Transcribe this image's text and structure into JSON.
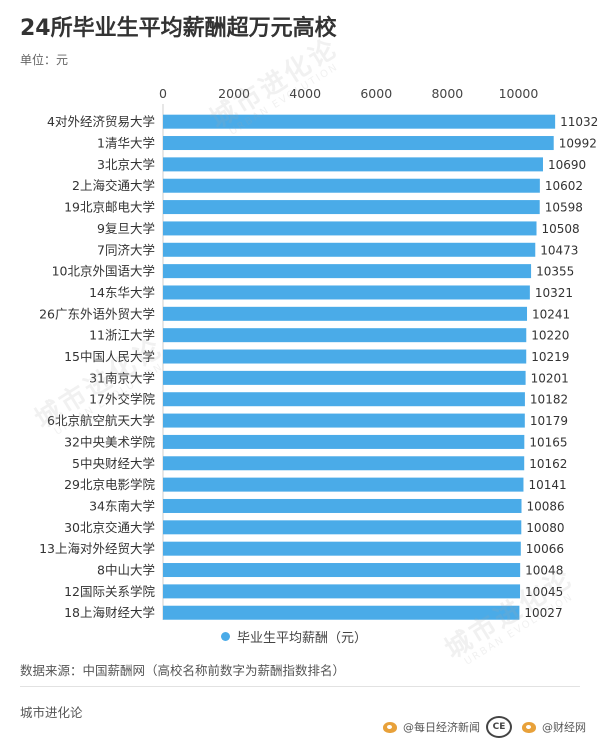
{
  "title": "24所毕业生平均薪酬超万元高校",
  "unit_label": "单位：元",
  "legend_label": "毕业生平均薪酬（元）",
  "source_note": "数据来源：中国薪酬网（高校名称前数字为薪酬指数排名）",
  "footer": "城市进化论",
  "credits": {
    "account1": "@每日经济新闻",
    "account2": "@财经网",
    "logo_text": "CE"
  },
  "watermark": {
    "cn": "城市进化论",
    "en": "URBAN EVOLUTION"
  },
  "colors": {
    "bar": "#4aabe8",
    "text": "#333333"
  },
  "chart_data": {
    "type": "bar",
    "orientation": "horizontal",
    "title": "24所毕业生平均薪酬超万元高校",
    "xlim": [
      0,
      11000
    ],
    "xticks": [
      0,
      2000,
      4000,
      6000,
      8000,
      10000
    ],
    "axis_position": "top",
    "grid": false,
    "legend_position": "bottom-center",
    "categories": [
      "4对外经济贸易大学",
      "1清华大学",
      "3北京大学",
      "2上海交通大学",
      "19北京邮电大学",
      "9复旦大学",
      "7同济大学",
      "10北京外国语大学",
      "14东华大学",
      "26广东外语外贸大学",
      "11浙江大学",
      "15中国人民大学",
      "31南京大学",
      "17外交学院",
      "6北京航空航天大学",
      "32中央美术学院",
      "5中央财经大学",
      "29北京电影学院",
      "34东南大学",
      "30北京交通大学",
      "13上海对外经贸大学",
      "8中山大学",
      "12国际关系学院",
      "18上海财经大学"
    ],
    "series": [
      {
        "name": "毕业生平均薪酬（元）",
        "values": [
          11032,
          10992,
          10690,
          10602,
          10598,
          10508,
          10473,
          10355,
          10321,
          10241,
          10220,
          10219,
          10201,
          10182,
          10179,
          10165,
          10162,
          10141,
          10086,
          10080,
          10066,
          10048,
          10045,
          10027
        ]
      }
    ]
  }
}
